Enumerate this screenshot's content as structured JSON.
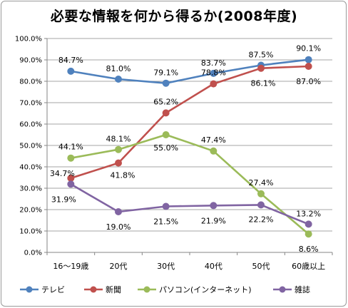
{
  "chart_data": {
    "type": "line",
    "title": "必要な情報を何から得るか(2008年度)",
    "categories": [
      "16〜19歳",
      "20代",
      "30代",
      "40代",
      "50代",
      "60歳以上"
    ],
    "ylim": [
      0,
      100
    ],
    "yticks": [
      "0.0%",
      "10.0%",
      "20.0%",
      "30.0%",
      "40.0%",
      "50.0%",
      "60.0%",
      "70.0%",
      "80.0%",
      "90.0%",
      "100.0%"
    ],
    "grid": true,
    "legend": "bottom",
    "series": [
      {
        "name": "テレビ",
        "color": "#4f81bd",
        "values": [
          84.7,
          81.0,
          79.1,
          83.7,
          87.5,
          90.1
        ],
        "labels": [
          "84.7%",
          "81.0%",
          "79.1%",
          "83.7%",
          "87.5%",
          "90.1%"
        ]
      },
      {
        "name": "新聞",
        "color": "#c0504d",
        "values": [
          34.7,
          41.8,
          65.2,
          78.8,
          86.1,
          87.0
        ],
        "labels": [
          "34.7%",
          "41.8%",
          "65.2%",
          "78.8%",
          "86.1%",
          "87.0%"
        ]
      },
      {
        "name": "パソコン(インターネット)",
        "color": "#9bbb59",
        "values": [
          44.1,
          48.1,
          55.0,
          47.4,
          27.4,
          8.6
        ],
        "labels": [
          "44.1%",
          "48.1%",
          "55.0%",
          "47.4%",
          "27.4%",
          "8.6%"
        ]
      },
      {
        "name": "雑誌",
        "color": "#8064a2",
        "values": [
          31.9,
          19.0,
          21.5,
          21.9,
          22.2,
          13.2
        ],
        "labels": [
          "31.9%",
          "19.0%",
          "21.5%",
          "21.9%",
          "22.2%",
          "13.2%"
        ]
      }
    ]
  }
}
